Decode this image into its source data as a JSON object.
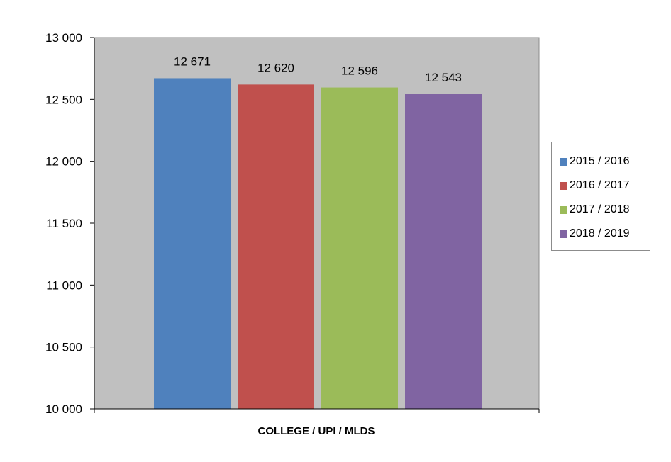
{
  "chart_data": {
    "type": "bar",
    "xlabel": "COLLEGE / UPI / MLDS",
    "ylabel": "",
    "ylim": [
      10000,
      13000
    ],
    "yticks": [
      10000,
      10500,
      11000,
      11500,
      12000,
      12500,
      13000
    ],
    "ytick_labels": [
      "10 000",
      "10 500",
      "11 000",
      "11 500",
      "12 000",
      "12 500",
      "13 000"
    ],
    "categories": [
      "COLLEGE / UPI / MLDS"
    ],
    "series": [
      {
        "name": "2015 / 2016",
        "values": [
          12671
        ],
        "label": "12 671",
        "color": "#4f81bd"
      },
      {
        "name": "2016 / 2017",
        "values": [
          12620
        ],
        "label": "12 620",
        "color": "#c0504d"
      },
      {
        "name": "2017 / 2018",
        "values": [
          12596
        ],
        "label": "12 596",
        "color": "#9bbb59"
      },
      {
        "name": "2018 / 2019",
        "values": [
          12543
        ],
        "label": "12 543",
        "color": "#8064a2"
      }
    ],
    "grid": false,
    "legend_position": "right",
    "plot_background": "#c0c0c0"
  }
}
